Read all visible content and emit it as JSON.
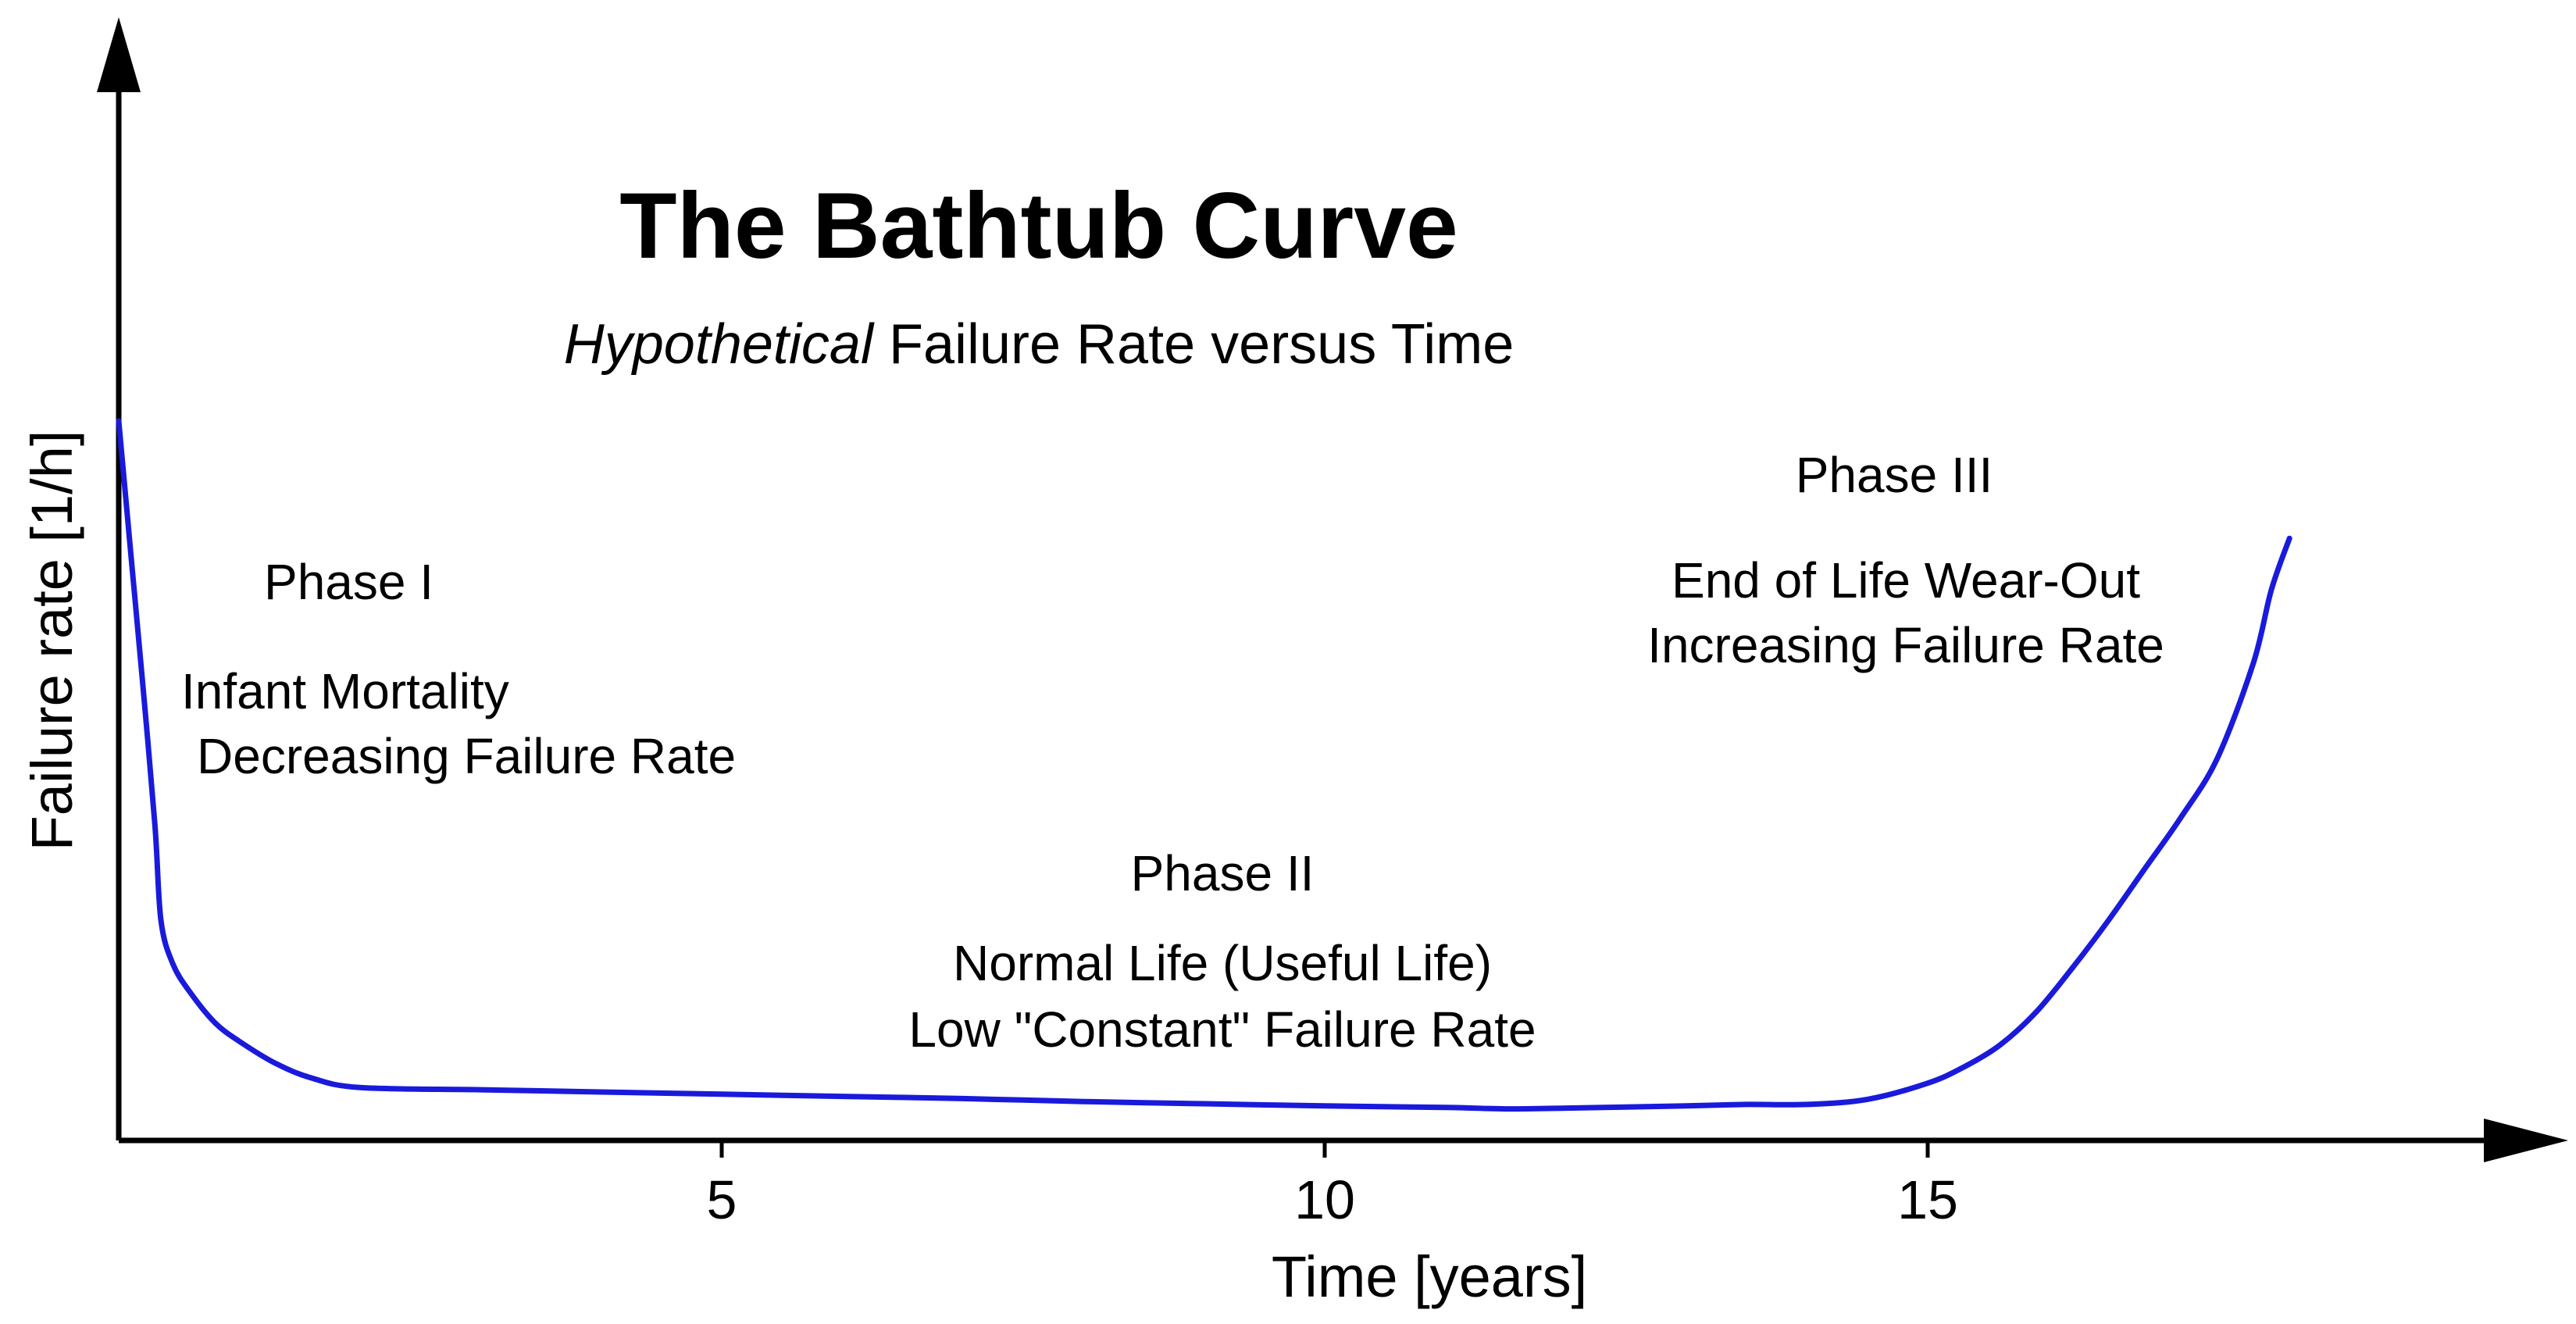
{
  "chart_data": {
    "type": "line",
    "title": "The Bathtub Curve",
    "subtitle_italic": "Hypothetical",
    "subtitle_rest": " Failure Rate versus Time",
    "xlabel": "Time [years]",
    "ylabel": "Failure rate [1/h]",
    "xlim": [
      0,
      20
    ],
    "ylim": [
      0,
      10
    ],
    "xticks": [
      5,
      10,
      15
    ],
    "grid": false,
    "legend": "none",
    "colors": {
      "curve": "#1a1adc",
      "axes": "#000000",
      "text": "#000000"
    },
    "annotations": {
      "phase1": {
        "heading": "Phase I",
        "line1": "Infant Mortality",
        "line2": "Decreasing Failure Rate"
      },
      "phase2": {
        "heading": "Phase II",
        "line1": "Normal Life (Useful Life)",
        "line2": "Low \"Constant\" Failure Rate"
      },
      "phase3": {
        "heading": "Phase III",
        "line1": "End of Life Wear-Out",
        "line2": "Increasing Failure Rate"
      }
    },
    "series": [
      {
        "x": [
          0,
          0.1,
          0.2,
          0.3,
          0.35,
          0.45,
          0.6,
          0.8,
          1.0,
          1.3,
          1.6,
          2.0,
          3.0,
          4.0,
          5.0,
          6.0,
          7.0,
          8.0,
          9.0,
          10.0,
          11.0,
          11.5,
          12.0,
          13.0,
          13.5,
          14.0,
          14.5,
          15.0,
          15.3,
          15.6,
          15.9,
          16.2,
          16.5,
          16.8,
          17.1,
          17.4,
          17.7,
          17.85,
          18.0
        ],
        "y": [
          9.8,
          8.0,
          6.2,
          4.3,
          3.0,
          2.4,
          2.0,
          1.6,
          1.35,
          1.05,
          0.85,
          0.72,
          0.69,
          0.66,
          0.63,
          0.6,
          0.57,
          0.53,
          0.5,
          0.47,
          0.45,
          0.43,
          0.44,
          0.47,
          0.49,
          0.49,
          0.56,
          0.78,
          1.0,
          1.3,
          1.75,
          2.35,
          3.0,
          3.7,
          4.4,
          5.2,
          6.5,
          7.5,
          8.2
        ]
      }
    ]
  }
}
